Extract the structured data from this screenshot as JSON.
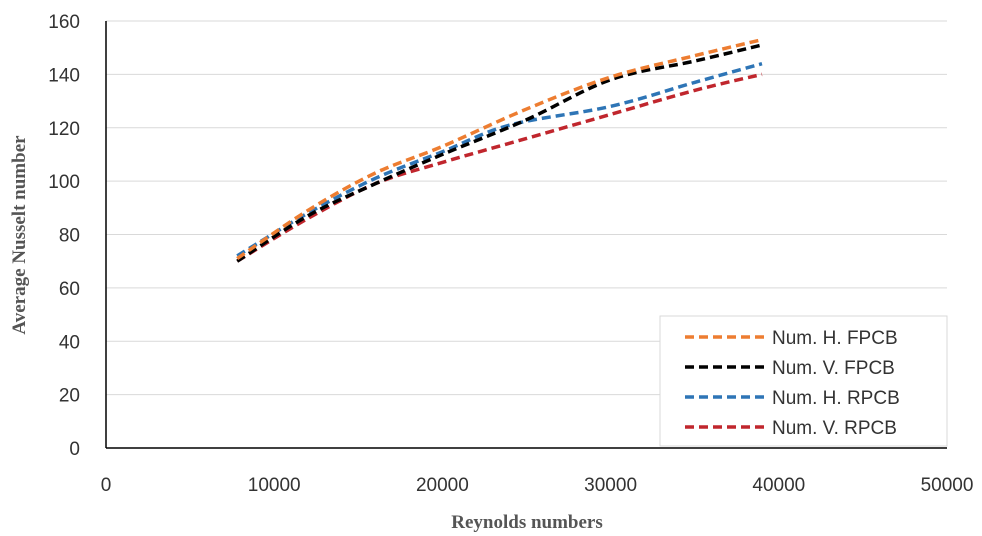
{
  "chart_data": {
    "type": "line",
    "title": "",
    "xlabel": "Reynolds numbers",
    "ylabel": "Average Nusselt number",
    "xlim": [
      0,
      50000
    ],
    "ylim": [
      0,
      160
    ],
    "x_ticks": [
      "0",
      "10000",
      "20000",
      "30000",
      "40000",
      "50000"
    ],
    "y_ticks": [
      "0",
      "20",
      "40",
      "60",
      "80",
      "100",
      "120",
      "140",
      "160"
    ],
    "grid": "horizontal",
    "legend_position": "bottom-right",
    "series": [
      {
        "name": "Num. H. FPCB",
        "color": "#ED7D31",
        "x": [
          7800,
          12000,
          16000,
          20000,
          25000,
          30000,
          35000,
          39000
        ],
        "y": [
          71,
          89,
          103,
          113,
          127,
          139,
          147,
          153
        ]
      },
      {
        "name": "Num. V. FPCB",
        "color": "#000000",
        "x": [
          7800,
          12000,
          16000,
          20000,
          25000,
          30000,
          35000,
          39000
        ],
        "y": [
          70,
          87,
          99,
          110,
          123,
          138,
          145,
          151
        ]
      },
      {
        "name": "Num. H. RPCB",
        "color": "#2E75B6",
        "x": [
          7800,
          12000,
          16000,
          20000,
          24000,
          30000,
          35000,
          39000
        ],
        "y": [
          72,
          88,
          101,
          111,
          121,
          128,
          137,
          144
        ]
      },
      {
        "name": "Num. V. RPCB",
        "color": "#C0262D",
        "x": [
          7800,
          12000,
          16000,
          20000,
          25000,
          30000,
          35000,
          39000
        ],
        "y": [
          70,
          86,
          99,
          107,
          116,
          125,
          134,
          140
        ]
      }
    ]
  }
}
